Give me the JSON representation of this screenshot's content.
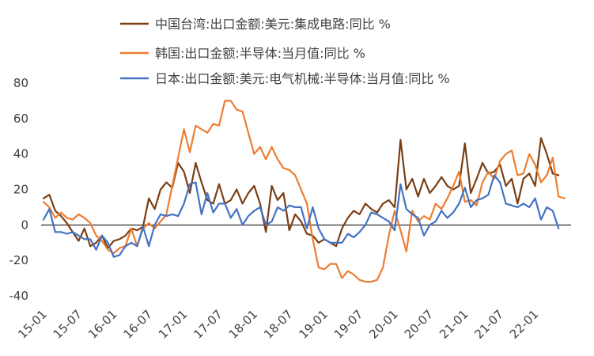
{
  "chart_data": {
    "type": "line",
    "title": "",
    "xlabel": "",
    "ylabel": "",
    "ylim": [
      -40,
      80
    ],
    "yticks": [
      -40,
      -20,
      0,
      20,
      40,
      60,
      80
    ],
    "xtick_labels": [
      "15-01",
      "15-07",
      "16-01",
      "16-07",
      "17-01",
      "17-07",
      "18-01",
      "18-07",
      "19-01",
      "19-07",
      "20-01",
      "20-07",
      "21-01",
      "21-07",
      "22-01"
    ],
    "legend_position": "top-left",
    "grid": false,
    "x_start": "2015-01",
    "series": [
      {
        "name": "中国台湾:出口金额:美元:集成电路:同比 %",
        "color": "#7B3F14",
        "values": [
          15,
          17,
          8,
          5,
          1,
          -4,
          -9,
          -2,
          -12,
          -10,
          -6,
          -13,
          -9,
          -8,
          -6,
          -2,
          -3,
          -1,
          15,
          9,
          20,
          24,
          21,
          35,
          30,
          18,
          35,
          24,
          14,
          12,
          23,
          12,
          14,
          20,
          12,
          18,
          22,
          12,
          -4,
          22,
          14,
          18,
          -3,
          6,
          2,
          -5,
          -6,
          -10,
          -8,
          -10,
          -12,
          -2,
          4,
          8,
          6,
          12,
          9,
          7,
          12,
          14,
          10,
          48,
          20,
          26,
          16,
          26,
          18,
          22,
          27,
          22,
          20,
          22,
          46,
          18,
          26,
          35,
          29,
          30,
          34,
          22,
          26,
          12,
          26,
          29,
          22,
          49,
          40,
          29,
          28
        ],
        "end_month": "2022-05"
      },
      {
        "name": "韩国:出口金额:半导体:当月值:同比 %",
        "color": "#ED7D31",
        "values": [
          13,
          10,
          4,
          7,
          4,
          3,
          6,
          4,
          1,
          -6,
          -9,
          -14,
          -16,
          -13,
          -12,
          -2,
          -12,
          -2,
          1,
          -2,
          2,
          6,
          22,
          38,
          54,
          41,
          56,
          54,
          52,
          57,
          56,
          70,
          70,
          65,
          64,
          52,
          40,
          44,
          37,
          44,
          37,
          32,
          31,
          28,
          20,
          12,
          -8,
          -24,
          -25,
          -22,
          -22,
          -30,
          -26,
          -28,
          -31,
          -32,
          -32,
          -31,
          -24,
          -6,
          8,
          -3,
          -15,
          8,
          2,
          5,
          3,
          12,
          9,
          15,
          22,
          30,
          13,
          14,
          11,
          24,
          30,
          26,
          36,
          40,
          42,
          28,
          29,
          40,
          34,
          24,
          28,
          38,
          16,
          15
        ],
        "end_month": "2022-06"
      },
      {
        "name": "日本:出口金额:美元:电气机械:半导体:当月值:同比 %",
        "color": "#4472C4",
        "values": [
          3,
          9,
          -4,
          -4,
          -5,
          -4,
          -6,
          -8,
          -8,
          -14,
          -6,
          -10,
          -18,
          -17,
          -12,
          -10,
          -12,
          -1,
          -12,
          0,
          6,
          5,
          6,
          5,
          12,
          23,
          24,
          6,
          18,
          7,
          12,
          12,
          4,
          9,
          0,
          5,
          8,
          10,
          0,
          2,
          10,
          8,
          11,
          10,
          10,
          -2,
          10,
          -2,
          -8,
          -10,
          -10,
          -10,
          -5,
          -7,
          -4,
          0,
          7,
          6,
          4,
          2,
          -3,
          23,
          9,
          6,
          4,
          -6,
          0,
          2,
          8,
          4,
          7,
          12,
          21,
          10,
          14,
          15,
          17,
          28,
          24,
          12,
          11,
          10,
          12,
          10,
          15,
          3,
          10,
          8,
          -2
        ],
        "end_month": "2022-05"
      }
    ]
  }
}
